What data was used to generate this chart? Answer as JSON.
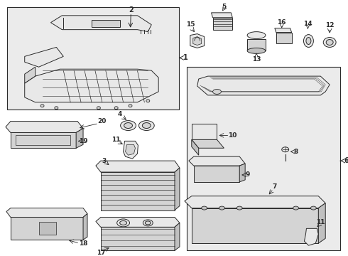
{
  "bg": "#ffffff",
  "lc": "#2a2a2a",
  "fc_light": "#e8e8e8",
  "fc_mid": "#d4d4d4",
  "fc_dark": "#c0c0c0",
  "fc_box": "#ebebeb",
  "lw": 0.7,
  "fig_w": 4.9,
  "fig_h": 3.6,
  "dpi": 100
}
